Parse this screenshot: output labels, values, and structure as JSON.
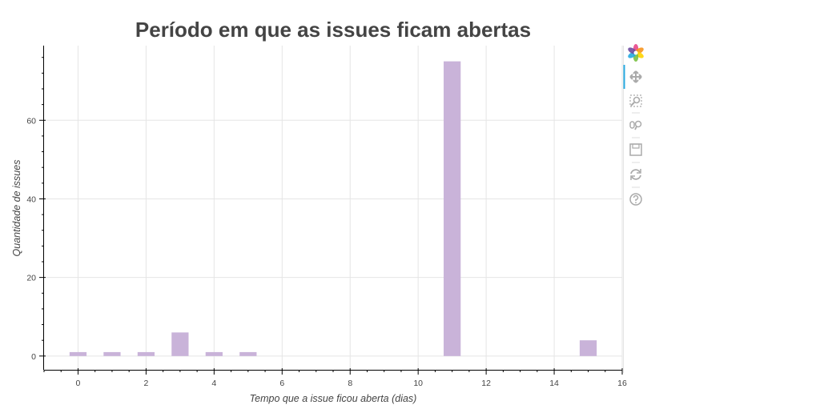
{
  "chart_data": {
    "type": "bar",
    "title": "Período em que as issues ficam abertas",
    "xlabel": "Tempo que a issue ficou aberta (dias)",
    "ylabel": "Quantidade de issues",
    "x": [
      0,
      1,
      2,
      3,
      4,
      5,
      11,
      15
    ],
    "values": [
      1,
      1,
      1,
      6,
      1,
      1,
      75,
      4
    ],
    "bar_width": 0.5,
    "xlim": [
      -1,
      16
    ],
    "ylim": [
      -3.5,
      79
    ],
    "x_ticks": [
      0,
      2,
      4,
      6,
      8,
      10,
      12,
      14,
      16
    ],
    "y_ticks": [
      0,
      20,
      40,
      60
    ],
    "grid": true,
    "bar_color": "#c9b3d9"
  },
  "toolbar": {
    "tools": [
      {
        "name": "bokeh-logo-icon",
        "icon": "logo",
        "interactable": true
      },
      {
        "name": "pan-tool-icon",
        "icon": "pan",
        "interactable": true
      },
      {
        "name": "box-zoom-tool-icon",
        "icon": "box-zoom",
        "interactable": true
      },
      {
        "name": "wheel-zoom-tool-icon",
        "icon": "wheel-zoom",
        "interactable": true
      },
      {
        "name": "save-tool-icon",
        "icon": "save",
        "interactable": true
      },
      {
        "name": "reset-tool-icon",
        "icon": "reset",
        "interactable": true
      },
      {
        "name": "help-tool-icon",
        "icon": "help",
        "interactable": true
      }
    ],
    "active_color": "#26aae1",
    "icon_color": "#aaaaaa"
  }
}
